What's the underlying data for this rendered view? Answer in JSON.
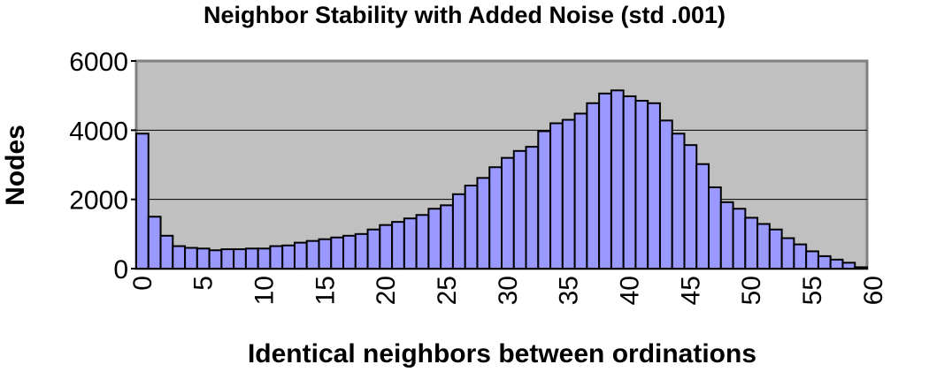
{
  "chart_data": {
    "type": "bar",
    "title": "Neighbor Stability with Added Noise (std .001)",
    "xlabel": "Identical neighbors between ordinations",
    "ylabel": "Nodes",
    "ylim": [
      0,
      6000
    ],
    "yticks": [
      0,
      2000,
      4000,
      6000
    ],
    "xticks": [
      0,
      5,
      10,
      15,
      20,
      25,
      30,
      35,
      40,
      45,
      50,
      55,
      60
    ],
    "grid": true,
    "colors": {
      "bar": "#9999ff",
      "plot_bg": "#c0c0c0",
      "border": "#808080"
    },
    "x": [
      0,
      1,
      2,
      3,
      4,
      5,
      6,
      7,
      8,
      9,
      10,
      11,
      12,
      13,
      14,
      15,
      16,
      17,
      18,
      19,
      20,
      21,
      22,
      23,
      24,
      25,
      26,
      27,
      28,
      29,
      30,
      31,
      32,
      33,
      34,
      35,
      36,
      37,
      38,
      39,
      40,
      41,
      42,
      43,
      44,
      45,
      46,
      47,
      48,
      49,
      50,
      51,
      52,
      53,
      54,
      55,
      56,
      57,
      58,
      59
    ],
    "values": [
      3900,
      1500,
      950,
      650,
      600,
      580,
      530,
      560,
      560,
      580,
      580,
      650,
      670,
      750,
      800,
      850,
      900,
      950,
      1000,
      1130,
      1260,
      1350,
      1450,
      1550,
      1730,
      1830,
      2150,
      2400,
      2620,
      2930,
      3200,
      3400,
      3520,
      3970,
      4200,
      4300,
      4480,
      4780,
      5060,
      5150,
      4980,
      4850,
      4780,
      4280,
      3900,
      3570,
      3020,
      2350,
      1920,
      1730,
      1470,
      1290,
      1130,
      880,
      700,
      500,
      360,
      260,
      170,
      40
    ]
  }
}
